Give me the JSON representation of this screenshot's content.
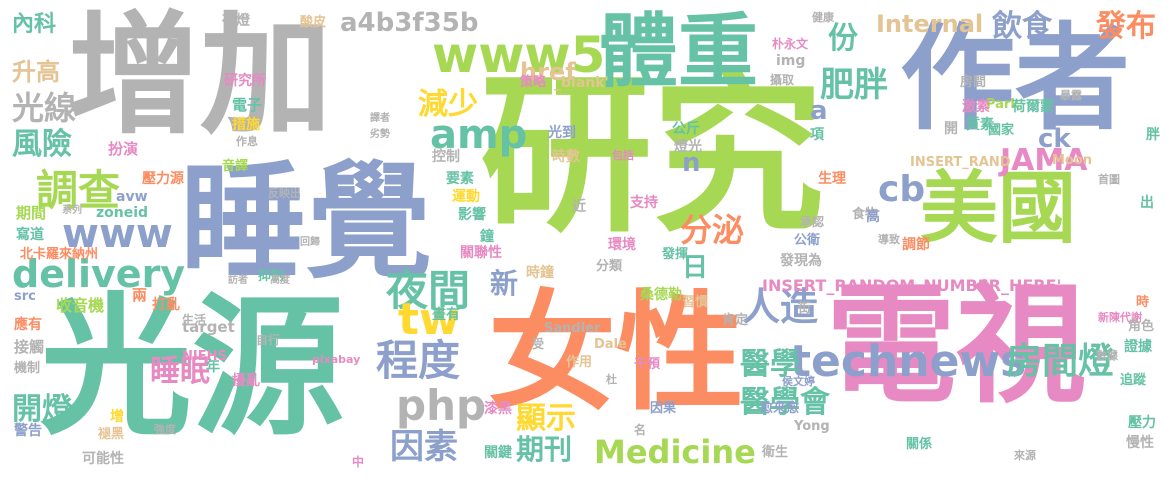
{
  "cloud": {
    "words": [
      {
        "text": "研究",
        "color": "#a6d854"
      },
      {
        "text": "光源",
        "color": "#66c2a5"
      },
      {
        "text": "增加",
        "color": "#b3b3b3"
      },
      {
        "text": "睡覺",
        "color": "#8da0cb"
      },
      {
        "text": "電視",
        "color": "#e78ac3"
      },
      {
        "text": "女性",
        "color": "#fc8d62"
      },
      {
        "text": "作者",
        "color": "#8da0cb"
      },
      {
        "text": "美國",
        "color": "#a6d854"
      },
      {
        "text": "體重",
        "color": "#66c2a5"
      },
      {
        "text": "www5",
        "color": "#a6d854"
      },
      {
        "text": "technews",
        "color": "#8da0cb"
      },
      {
        "text": "php",
        "color": "#b3b3b3"
      },
      {
        "text": "delivery",
        "color": "#66c2a5"
      },
      {
        "text": "www",
        "color": "#8da0cb"
      },
      {
        "text": "調查",
        "color": "#a6d854"
      },
      {
        "text": "夜間",
        "color": "#66c2a5"
      },
      {
        "text": "程度",
        "color": "#8da0cb"
      },
      {
        "text": "tw",
        "color": "#ffd92f"
      },
      {
        "text": "amp",
        "color": "#66c2a5"
      },
      {
        "text": "a4b3f35b",
        "color": "#b3b3b3"
      },
      {
        "text": "Internal",
        "color": "#e5c494"
      },
      {
        "text": "飲食",
        "color": "#8da0cb"
      },
      {
        "text": "發布",
        "color": "#fc8d62"
      },
      {
        "text": "肥胖",
        "color": "#66c2a5"
      },
      {
        "text": "份",
        "color": "#66c2a5"
      },
      {
        "text": "cb",
        "color": "#8da0cb"
      },
      {
        "text": "分泌",
        "color": "#fc8d62"
      },
      {
        "text": "人造",
        "color": "#8da0cb"
      },
      {
        "text": "JAMA",
        "color": "#e78ac3"
      },
      {
        "text": "房間燈",
        "color": "#66c2a5"
      },
      {
        "text": "減少",
        "color": "#ffd92f"
      },
      {
        "text": "光線",
        "color": "#b3b3b3"
      },
      {
        "text": "風險",
        "color": "#66c2a5"
      },
      {
        "text": "開燈",
        "color": "#66c2a5"
      },
      {
        "text": "睡眠",
        "color": "#e78ac3"
      },
      {
        "text": "因素",
        "color": "#8da0cb"
      },
      {
        "text": "期刊",
        "color": "#66c2a5"
      },
      {
        "text": "Medicine",
        "color": "#a6d854"
      },
      {
        "text": "醫學",
        "color": "#66c2a5"
      },
      {
        "text": "醫學會",
        "color": "#66c2a5"
      },
      {
        "text": "顯示",
        "color": "#ffd92f"
      },
      {
        "text": "內科",
        "color": "#66c2a5"
      },
      {
        "text": "升高",
        "color": "#e5c494"
      },
      {
        "text": "href",
        "color": "#e5c494"
      },
      {
        "text": "ck",
        "color": "#8da0cb"
      },
      {
        "text": "新",
        "color": "#8da0cb"
      },
      {
        "text": "日",
        "color": "#66c2a5"
      },
      {
        "text": "n",
        "color": "#8da0cb"
      },
      {
        "text": "a",
        "color": "#8da0cb"
      },
      {
        "text": "INSERT_RANDOM_NUMBER_HERE'",
        "color": "#e78ac3"
      },
      {
        "text": "INSERT_RAND",
        "color": "#e5c494"
      },
      {
        "text": "夜燈",
        "color": "#b3b3b3"
      },
      {
        "text": "酸皮",
        "color": "#e5c494"
      },
      {
        "text": "研究所",
        "color": "#e78ac3"
      },
      {
        "text": "電子",
        "color": "#66c2a5"
      },
      {
        "text": "措施",
        "color": "#ffd92f"
      },
      {
        "text": "扮演",
        "color": "#e78ac3"
      },
      {
        "text": "音譯",
        "color": "#a6d854"
      },
      {
        "text": "壓力源",
        "color": "#fc8d62"
      },
      {
        "text": "avw",
        "color": "#8da0cb"
      },
      {
        "text": "zoneid",
        "color": "#66c2a5"
      },
      {
        "text": "期間",
        "color": "#a6d854"
      },
      {
        "text": "寫道",
        "color": "#66c2a5"
      },
      {
        "text": "北卡羅來納州",
        "color": "#fc8d62"
      },
      {
        "text": "收音機",
        "color": "#a6d854"
      },
      {
        "text": "應有",
        "color": "#fc8d62"
      },
      {
        "text": "接觸",
        "color": "#b3b3b3"
      },
      {
        "text": "機制",
        "color": "#b3b3b3"
      },
      {
        "text": "警告",
        "color": "#8da0cb"
      },
      {
        "text": "可能性",
        "color": "#b3b3b3"
      },
      {
        "text": "src",
        "color": "#8da0cb"
      },
      {
        "text": "兩",
        "color": "#fc8d62"
      },
      {
        "text": "打亂",
        "color": "#fc8d62"
      },
      {
        "text": "target",
        "color": "#b3b3b3"
      },
      {
        "text": "NIEHS",
        "color": "#e78ac3"
      },
      {
        "text": "年",
        "color": "#66c2a5"
      },
      {
        "text": "擾亂",
        "color": "#e78ac3"
      },
      {
        "text": "增",
        "color": "#ffd92f"
      },
      {
        "text": "褪黑",
        "color": "#e5c494"
      },
      {
        "text": "強度",
        "color": "#b3b3b3"
      },
      {
        "text": "中",
        "color": "#e78ac3"
      },
      {
        "text": "抑制",
        "color": "#66c2a5"
      },
      {
        "text": "控制",
        "color": "#b3b3b3"
      },
      {
        "text": "要素",
        "color": "#66c2a5"
      },
      {
        "text": "運動",
        "color": "#ffd92f"
      },
      {
        "text": "影響",
        "color": "#66c2a5"
      },
      {
        "text": "鐘",
        "color": "#66c2a5"
      },
      {
        "text": "關聯性",
        "color": "#e78ac3"
      },
      {
        "text": "時鐘",
        "color": "#e5c494"
      },
      {
        "text": "分類",
        "color": "#b3b3b3"
      },
      {
        "text": "晝有",
        "color": "#66c2a5"
      },
      {
        "text": "干預",
        "color": "#e78ac3"
      },
      {
        "text": "漆黑",
        "color": "#e78ac3"
      },
      {
        "text": "關鍵",
        "color": "#66c2a5"
      },
      {
        "text": "作用",
        "color": "#e5c494"
      },
      {
        "text": "因果",
        "color": "#8da0cb"
      },
      {
        "text": "名",
        "color": "#b3b3b3"
      },
      {
        "text": "衛生",
        "color": "#b3b3b3"
      },
      {
        "text": "Yong",
        "color": "#b3b3b3"
      },
      {
        "text": "Dale",
        "color": "#e5c494"
      },
      {
        "text": "Sandler",
        "color": "#b3b3b3"
      },
      {
        "text": "pixabay",
        "color": "#e78ac3"
      },
      {
        "text": "自行",
        "color": "#b3b3b3"
      },
      {
        "text": "生活",
        "color": "#b3b3b3"
      },
      {
        "text": "時數",
        "color": "#e5c494"
      },
      {
        "text": "光到",
        "color": "#8da0cb"
      },
      {
        "text": "近",
        "color": "#b3b3b3"
      },
      {
        "text": "公斤",
        "color": "#66c2a5"
      },
      {
        "text": "燈光",
        "color": "#b3b3b3"
      },
      {
        "text": "支持",
        "color": "#e78ac3"
      },
      {
        "text": "環境",
        "color": "#e78ac3"
      },
      {
        "text": "發揮",
        "color": "#66c2a5"
      },
      {
        "text": "桑德勒",
        "color": "#a6d854"
      },
      {
        "text": "習慣",
        "color": "#e5c494"
      },
      {
        "text": "肯定",
        "color": "#b3b3b3"
      },
      {
        "text": "發現為",
        "color": "#b3b3b3"
      },
      {
        "text": "公衛",
        "color": "#8da0cb"
      },
      {
        "text": "承認",
        "color": "#b3b3b3"
      },
      {
        "text": "食物",
        "color": "#b3b3b3"
      },
      {
        "text": "生理",
        "color": "#fc8d62"
      },
      {
        "text": "高",
        "color": "#8da0cb"
      },
      {
        "text": "項",
        "color": "#66c2a5"
      },
      {
        "text": "健康",
        "color": "#b3b3b3"
      },
      {
        "text": "朴永文",
        "color": "#e78ac3"
      },
      {
        "text": "img",
        "color": "#b3b3b3"
      },
      {
        "text": "攝取",
        "color": "#b3b3b3"
      },
      {
        "text": "策略",
        "color": "#e78ac3"
      },
      {
        "text": "_blank'",
        "color": "#e5c494"
      },
      {
        "text": "房間",
        "color": "#b3b3b3"
      },
      {
        "text": "Park",
        "color": "#a6d854"
      },
      {
        "text": "荷爾蒙",
        "color": "#66c2a5"
      },
      {
        "text": "暴露",
        "color": "#b3b3b3"
      },
      {
        "text": "激素",
        "color": "#e78ac3"
      },
      {
        "text": "質素",
        "color": "#66c2a5"
      },
      {
        "text": "開",
        "color": "#b3b3b3"
      },
      {
        "text": "國家",
        "color": "#66c2a5"
      },
      {
        "text": "胖",
        "color": "#66c2a5"
      },
      {
        "text": "Moon",
        "color": "#e5c494"
      },
      {
        "text": "首圖",
        "color": "#b3b3b3"
      },
      {
        "text": "出",
        "color": "#66c2a5"
      },
      {
        "text": "調節",
        "color": "#fc8d62"
      },
      {
        "text": "導致",
        "color": "#b3b3b3"
      },
      {
        "text": "時",
        "color": "#fc8d62"
      },
      {
        "text": "新陳代謝",
        "color": "#e78ac3"
      },
      {
        "text": "街",
        "color": "#b3b3b3"
      },
      {
        "text": "角色",
        "color": "#b3b3b3"
      },
      {
        "text": "證據",
        "color": "#66c2a5"
      },
      {
        "text": "數據",
        "color": "#b3b3b3"
      },
      {
        "text": "追蹤",
        "color": "#66c2a5"
      },
      {
        "text": "侯文婷",
        "color": "#8da0cb"
      },
      {
        "text": "壓力",
        "color": "#66c2a5"
      },
      {
        "text": "慢性",
        "color": "#b3b3b3"
      },
      {
        "text": "愈來愈",
        "color": "#8da0cb"
      },
      {
        "text": "關係",
        "color": "#66c2a5"
      },
      {
        "text": "來源",
        "color": "#b3b3b3"
      },
      {
        "text": "情況",
        "color": "#b3b3b3"
      },
      {
        "text": "作息",
        "color": "#b3b3b3"
      },
      {
        "text": "譯者",
        "color": "#b3b3b3"
      },
      {
        "text": "劣勢",
        "color": "#b3b3b3"
      },
      {
        "text": "包括",
        "color": "#e78ac3"
      },
      {
        "text": "系列",
        "color": "#b3b3b3"
      },
      {
        "text": "反映出",
        "color": "#b3b3b3"
      },
      {
        "text": "回歸",
        "color": "#b3b3b3"
      },
      {
        "text": "高度",
        "color": "#b3b3b3"
      },
      {
        "text": "訪者",
        "color": "#b3b3b3"
      },
      {
        "text": "杜",
        "color": "#b3b3b3"
      },
      {
        "text": "受",
        "color": "#b3b3b3"
      }
    ]
  }
}
